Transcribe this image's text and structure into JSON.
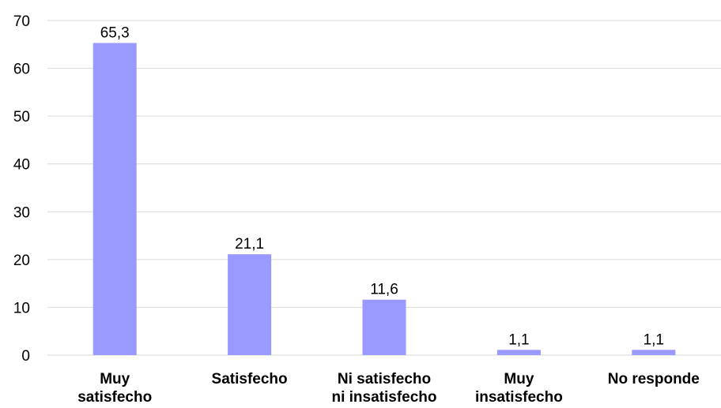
{
  "chart_data": {
    "type": "bar",
    "title": "",
    "xlabel": "",
    "ylabel": "",
    "categories": [
      [
        "Muy",
        "satisfecho"
      ],
      [
        "Satisfecho"
      ],
      [
        "Ni satisfecho",
        "ni insatisfecho"
      ],
      [
        "Muy",
        "insatisfecho"
      ],
      [
        "No responde"
      ]
    ],
    "values": [
      65.3,
      21.1,
      11.6,
      1.1,
      1.1
    ],
    "value_labels": [
      "65,3",
      "21,1",
      "11,6",
      "1,1",
      "1,1"
    ],
    "ylim": [
      0,
      70
    ],
    "yticks": [
      0,
      10,
      20,
      30,
      40,
      50,
      60,
      70
    ],
    "grid": true,
    "legend": "none",
    "bar_color": "#9999ff",
    "grid_color": "#d9d9d9"
  }
}
